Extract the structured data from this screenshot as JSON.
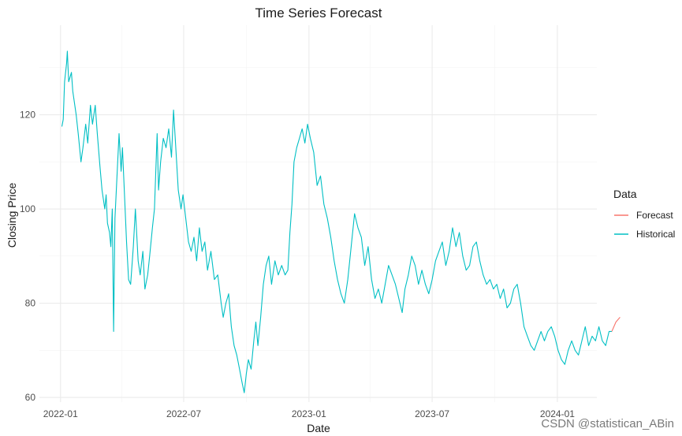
{
  "chart_data": {
    "type": "line",
    "title": "Time Series Forecast",
    "xlabel": "Date",
    "ylabel": "Closing Price",
    "xlim": [
      "2021-12-01",
      "2024-02-28"
    ],
    "ylim": [
      59,
      139
    ],
    "x_ticks": [
      "2022-01",
      "2022-07",
      "2023-01",
      "2023-07",
      "2024-01"
    ],
    "x_tick_dates": [
      "2022-01-01",
      "2022-07-01",
      "2023-01-01",
      "2023-07-01",
      "2024-01-01"
    ],
    "y_ticks": [
      60,
      80,
      100,
      120
    ],
    "grid": true,
    "legend": {
      "title": "Data",
      "position": "right",
      "entries": [
        {
          "label": "Forecast",
          "color": "#F8766D"
        },
        {
          "label": "Historical",
          "color": "#00BFC4"
        }
      ]
    },
    "series": [
      {
        "name": "Historical",
        "color": "#00BFC4",
        "points": [
          [
            "2022-01-03",
            117.5
          ],
          [
            "2022-01-05",
            119
          ],
          [
            "2022-01-07",
            127
          ],
          [
            "2022-01-10",
            131
          ],
          [
            "2022-01-11",
            133.5
          ],
          [
            "2022-01-13",
            127
          ],
          [
            "2022-01-17",
            129
          ],
          [
            "2022-01-19",
            125
          ],
          [
            "2022-01-24",
            120
          ],
          [
            "2022-01-27",
            116
          ],
          [
            "2022-01-31",
            110
          ],
          [
            "2022-02-03",
            113
          ],
          [
            "2022-02-07",
            118
          ],
          [
            "2022-02-10",
            114
          ],
          [
            "2022-02-14",
            122
          ],
          [
            "2022-02-17",
            118
          ],
          [
            "2022-02-21",
            122
          ],
          [
            "2022-02-24",
            116
          ],
          [
            "2022-02-28",
            109
          ],
          [
            "2022-03-03",
            104
          ],
          [
            "2022-03-07",
            100
          ],
          [
            "2022-03-09",
            103
          ],
          [
            "2022-03-11",
            97
          ],
          [
            "2022-03-14",
            95
          ],
          [
            "2022-03-16",
            92
          ],
          [
            "2022-03-18",
            100
          ],
          [
            "2022-03-20",
            74
          ],
          [
            "2022-03-22",
            98
          ],
          [
            "2022-03-25",
            107
          ],
          [
            "2022-03-28",
            116
          ],
          [
            "2022-03-31",
            108
          ],
          [
            "2022-04-02",
            113
          ],
          [
            "2022-04-05",
            103
          ],
          [
            "2022-04-08",
            93
          ],
          [
            "2022-04-11",
            85
          ],
          [
            "2022-04-14",
            84
          ],
          [
            "2022-04-18",
            92
          ],
          [
            "2022-04-21",
            100
          ],
          [
            "2022-04-25",
            89
          ],
          [
            "2022-04-28",
            86
          ],
          [
            "2022-05-02",
            91
          ],
          [
            "2022-05-05",
            83
          ],
          [
            "2022-05-09",
            86
          ],
          [
            "2022-05-12",
            90
          ],
          [
            "2022-05-16",
            96
          ],
          [
            "2022-05-19",
            100
          ],
          [
            "2022-05-23",
            116
          ],
          [
            "2022-05-25",
            104
          ],
          [
            "2022-05-28",
            110
          ],
          [
            "2022-06-01",
            115
          ],
          [
            "2022-06-05",
            113
          ],
          [
            "2022-06-09",
            117
          ],
          [
            "2022-06-13",
            111
          ],
          [
            "2022-06-16",
            121
          ],
          [
            "2022-06-19",
            114
          ],
          [
            "2022-06-23",
            104
          ],
          [
            "2022-06-27",
            100
          ],
          [
            "2022-06-30",
            103
          ],
          [
            "2022-07-04",
            98
          ],
          [
            "2022-07-08",
            93
          ],
          [
            "2022-07-12",
            91
          ],
          [
            "2022-07-16",
            94
          ],
          [
            "2022-07-20",
            89
          ],
          [
            "2022-07-24",
            96
          ],
          [
            "2022-07-28",
            91
          ],
          [
            "2022-08-01",
            93
          ],
          [
            "2022-08-05",
            87
          ],
          [
            "2022-08-10",
            91
          ],
          [
            "2022-08-15",
            85
          ],
          [
            "2022-08-20",
            86
          ],
          [
            "2022-08-25",
            80
          ],
          [
            "2022-08-28",
            77
          ],
          [
            "2022-09-01",
            80
          ],
          [
            "2022-09-05",
            82
          ],
          [
            "2022-09-09",
            75
          ],
          [
            "2022-09-13",
            71
          ],
          [
            "2022-09-17",
            69
          ],
          [
            "2022-09-21",
            66
          ],
          [
            "2022-09-25",
            63
          ],
          [
            "2022-09-28",
            61
          ],
          [
            "2022-10-01",
            65
          ],
          [
            "2022-10-04",
            68
          ],
          [
            "2022-10-08",
            66
          ],
          [
            "2022-10-12",
            72
          ],
          [
            "2022-10-15",
            76
          ],
          [
            "2022-10-18",
            71
          ],
          [
            "2022-10-22",
            77
          ],
          [
            "2022-10-26",
            84
          ],
          [
            "2022-10-30",
            88
          ],
          [
            "2022-11-03",
            90
          ],
          [
            "2022-11-07",
            84
          ],
          [
            "2022-11-12",
            89
          ],
          [
            "2022-11-17",
            86
          ],
          [
            "2022-11-22",
            88
          ],
          [
            "2022-11-27",
            86
          ],
          [
            "2022-12-01",
            87
          ],
          [
            "2022-12-04",
            95
          ],
          [
            "2022-12-07",
            101
          ],
          [
            "2022-12-10",
            110
          ],
          [
            "2022-12-14",
            113
          ],
          [
            "2022-12-18",
            115
          ],
          [
            "2022-12-22",
            117
          ],
          [
            "2022-12-26",
            114
          ],
          [
            "2022-12-30",
            118
          ],
          [
            "2023-01-03",
            115
          ],
          [
            "2023-01-08",
            112
          ],
          [
            "2023-01-13",
            105
          ],
          [
            "2023-01-18",
            107
          ],
          [
            "2023-01-23",
            101
          ],
          [
            "2023-01-28",
            98
          ],
          [
            "2023-02-02",
            94
          ],
          [
            "2023-02-07",
            89
          ],
          [
            "2023-02-12",
            85
          ],
          [
            "2023-02-17",
            82
          ],
          [
            "2023-02-22",
            80
          ],
          [
            "2023-02-27",
            85
          ],
          [
            "2023-03-04",
            92
          ],
          [
            "2023-03-09",
            99
          ],
          [
            "2023-03-14",
            96
          ],
          [
            "2023-03-19",
            94
          ],
          [
            "2023-03-24",
            88
          ],
          [
            "2023-03-29",
            92
          ],
          [
            "2023-04-03",
            85
          ],
          [
            "2023-04-08",
            81
          ],
          [
            "2023-04-13",
            83
          ],
          [
            "2023-04-18",
            80
          ],
          [
            "2023-04-23",
            84
          ],
          [
            "2023-04-28",
            88
          ],
          [
            "2023-05-03",
            86
          ],
          [
            "2023-05-08",
            84
          ],
          [
            "2023-05-13",
            81
          ],
          [
            "2023-05-18",
            78
          ],
          [
            "2023-05-22",
            83
          ],
          [
            "2023-05-27",
            86
          ],
          [
            "2023-06-01",
            90
          ],
          [
            "2023-06-06",
            88
          ],
          [
            "2023-06-11",
            84
          ],
          [
            "2023-06-16",
            87
          ],
          [
            "2023-06-21",
            84
          ],
          [
            "2023-06-26",
            82
          ],
          [
            "2023-07-01",
            85
          ],
          [
            "2023-07-06",
            89
          ],
          [
            "2023-07-11",
            91
          ],
          [
            "2023-07-16",
            93
          ],
          [
            "2023-07-21",
            88
          ],
          [
            "2023-07-26",
            91
          ],
          [
            "2023-07-31",
            96
          ],
          [
            "2023-08-05",
            92
          ],
          [
            "2023-08-10",
            95
          ],
          [
            "2023-08-15",
            90
          ],
          [
            "2023-08-20",
            87
          ],
          [
            "2023-08-25",
            88
          ],
          [
            "2023-08-30",
            92
          ],
          [
            "2023-09-04",
            93
          ],
          [
            "2023-09-09",
            89
          ],
          [
            "2023-09-14",
            86
          ],
          [
            "2023-09-19",
            84
          ],
          [
            "2023-09-24",
            85
          ],
          [
            "2023-09-29",
            83
          ],
          [
            "2023-10-04",
            84
          ],
          [
            "2023-10-09",
            81
          ],
          [
            "2023-10-14",
            83
          ],
          [
            "2023-10-19",
            79
          ],
          [
            "2023-10-24",
            80
          ],
          [
            "2023-10-29",
            83
          ],
          [
            "2023-11-03",
            84
          ],
          [
            "2023-11-08",
            80
          ],
          [
            "2023-11-13",
            75
          ],
          [
            "2023-11-18",
            73
          ],
          [
            "2023-11-23",
            71
          ],
          [
            "2023-11-28",
            70
          ],
          [
            "2023-12-03",
            72
          ],
          [
            "2023-12-08",
            74
          ],
          [
            "2023-12-13",
            72
          ],
          [
            "2023-12-18",
            74
          ],
          [
            "2023-12-23",
            75
          ],
          [
            "2023-12-28",
            73
          ],
          [
            "2024-01-02",
            70
          ],
          [
            "2024-01-07",
            68
          ],
          [
            "2024-01-12",
            67
          ],
          [
            "2024-01-17",
            70
          ],
          [
            "2024-01-22",
            72
          ],
          [
            "2024-01-27",
            70
          ],
          [
            "2024-02-01",
            69
          ],
          [
            "2024-02-06",
            72
          ],
          [
            "2024-02-11",
            75
          ],
          [
            "2024-02-16",
            71
          ],
          [
            "2024-02-21",
            73
          ],
          [
            "2024-02-26",
            72
          ],
          [
            "2024-03-02",
            75
          ],
          [
            "2024-03-07",
            72
          ],
          [
            "2024-03-12",
            71
          ],
          [
            "2024-03-17",
            74
          ],
          [
            "2024-03-21",
            74
          ]
        ]
      },
      {
        "name": "Forecast",
        "color": "#F8766D",
        "points": [
          [
            "2024-03-21",
            74
          ],
          [
            "2024-03-24",
            75
          ],
          [
            "2024-03-27",
            76
          ],
          [
            "2024-03-30",
            76.5
          ],
          [
            "2024-04-02",
            77
          ]
        ]
      }
    ]
  },
  "watermark": "CSDN @statistican_ABin"
}
